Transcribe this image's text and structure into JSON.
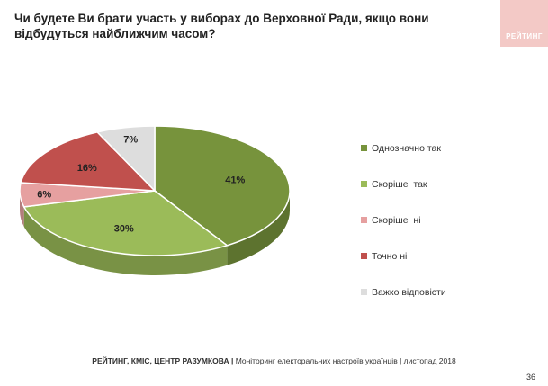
{
  "title": "Чи будете Ви брати участь у виборах до Верховної Ради, якщо вони відбудуться найближчим часом?",
  "logo": "РЕЙТИНГ",
  "footer": {
    "source": "РЕЙТИНГ, КМІС, ЦЕНТР РАЗУМКОВА |",
    "description": " Моніторинг електоральних настроїв українців | листопад 2018"
  },
  "page_number": "36",
  "colors": {
    "dark_green": "#77933c",
    "light_green": "#9bbb59",
    "pink": "#e6a0a0",
    "red": "#c0504d",
    "grey": "#dddddd"
  },
  "chart_data": {
    "type": "pie",
    "title": "",
    "legend_position": "right",
    "slices": [
      {
        "label": "Однозначно так",
        "value": 41,
        "display": "41%",
        "color": "#77933c"
      },
      {
        "label": "Скоріше  так",
        "value": 30,
        "display": "30%",
        "color": "#9bbb59"
      },
      {
        "label": "Скоріше  ні",
        "value": 6,
        "display": "6%",
        "color": "#e6a0a0"
      },
      {
        "label": "Точно ні",
        "value": 16,
        "display": "16%",
        "color": "#c0504d"
      },
      {
        "label": "Важко відповісти",
        "value": 7,
        "display": "7%",
        "color": "#dddddd"
      }
    ]
  }
}
